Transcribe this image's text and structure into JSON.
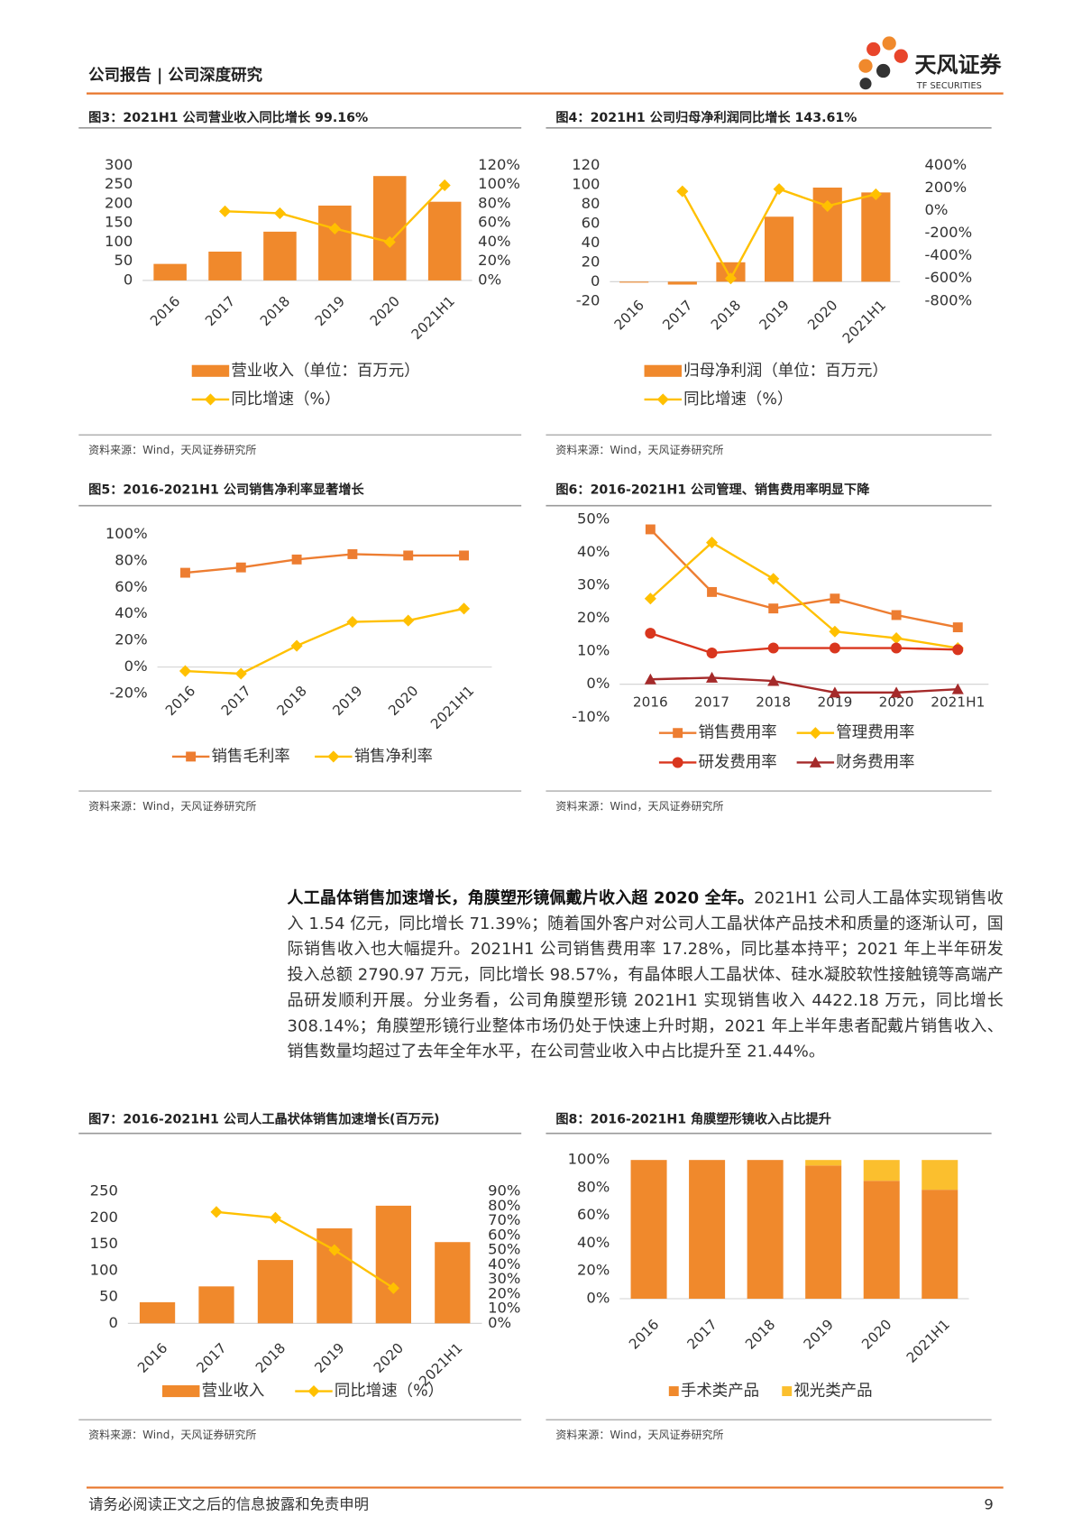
{
  "header": {
    "left": "公司报告 | 公司深度研究",
    "logo": "天风证券",
    "logo_en": "TF SECURITIES"
  },
  "body": {
    "lead": "人工晶体销售加速增长，角膜塑形镜佩戴片收入超 2020 全年。",
    "text": "2021H1 公司人工晶体实现销售收入 1.54 亿元，同比增长 71.39%；随着国外客户对公司人工晶状体产品技术和质量的逐渐认可，国际销售收入也大幅提升。2021H1 公司销售费用率 17.28%，同比基本持平；2021 年上半年研发投入总额 2790.97 万元，同比增长 98.57%，有晶体眼人工晶状体、硅水凝胶软性接触镜等高端产品研发顺利开展。分业务看，公司角膜塑形镜 2021H1 实现销售收入 4422.18 万元，同比增长 308.14%；角膜塑形镜行业整体市场仍处于快速上升时期，2021 年上半年患者配戴片销售收入、销售数量均超过了去年全年水平，在公司营业收入中占比提升至 21.44%。"
  },
  "footer": {
    "disclaimer": "请务必阅读正文之后的信息披露和免责申明",
    "page": "9"
  },
  "chart_data": [
    {
      "type": "bar",
      "title": "图3：2021H1 公司营业收入同比增长 99.16%",
      "source": "资料来源：Wind，天风证券研究所",
      "categories": [
        "2016",
        "2017",
        "2018",
        "2019",
        "2020",
        "2021H1"
      ],
      "series": [
        {
          "name": "营业收入（单位：百万元）",
          "type": "bar",
          "color": "#F0892C",
          "values": [
            43,
            75,
            127,
            195,
            272,
            205
          ]
        },
        {
          "name": "同比增速（%）",
          "type": "line",
          "marker": "diamond",
          "axis": "y2",
          "color": "#FFC000",
          "values": [
            null,
            72,
            70,
            54,
            40,
            99.16
          ]
        }
      ],
      "ylim": [
        0,
        300
      ],
      "yticks": [
        0,
        50,
        100,
        150,
        200,
        250,
        300
      ],
      "y2lim": [
        0,
        120
      ],
      "y2ticks": [
        {
          "value": 0,
          "label": "0%"
        },
        {
          "value": 20,
          "label": "20%"
        },
        {
          "value": 40,
          "label": "40%"
        },
        {
          "value": 60,
          "label": "60%"
        },
        {
          "value": 80,
          "label": "80%"
        },
        {
          "value": 100,
          "label": "100%"
        },
        {
          "value": 120,
          "label": "120%"
        }
      ]
    },
    {
      "type": "bar",
      "title": "图4：2021H1 公司归母净利润同比增长 143.61%",
      "source": "资料来源：Wind，天风证券研究所",
      "categories": [
        "2016",
        "2017",
        "2018",
        "2019",
        "2020",
        "2021H1"
      ],
      "series": [
        {
          "name": "归母净利润（单位：百万元）",
          "type": "bar",
          "color": "#F0892C",
          "values": [
            -1,
            -3,
            20,
            67,
            97,
            92
          ]
        },
        {
          "name": "同比增速（%）",
          "type": "line",
          "marker": "diamond",
          "axis": "y2",
          "color": "#FFC000",
          "values": [
            null,
            170,
            -600,
            190,
            40,
            143.61
          ]
        }
      ],
      "ylim": [
        -20,
        120
      ],
      "yticks": [
        -20,
        0,
        20,
        40,
        60,
        80,
        100,
        120
      ],
      "y2lim": [
        -800,
        400
      ],
      "y2ticks": [
        {
          "value": -800,
          "label": "-800%"
        },
        {
          "value": -600,
          "label": "-600%"
        },
        {
          "value": -400,
          "label": "-400%"
        },
        {
          "value": -200,
          "label": "-200%"
        },
        {
          "value": 0,
          "label": "0%"
        },
        {
          "value": 200,
          "label": "200%"
        },
        {
          "value": 400,
          "label": "400%"
        }
      ]
    },
    {
      "type": "line",
      "title": "图5：2016-2021H1 公司销售净利率显著增长",
      "source": "资料来源：Wind，天风证券研究所",
      "categories": [
        "2016",
        "2017",
        "2018",
        "2019",
        "2020",
        "2021H1"
      ],
      "series": [
        {
          "name": "销售毛利率",
          "marker": "square",
          "color": "#ED7D31",
          "values": [
            71,
            75,
            81,
            85,
            84,
            84
          ]
        },
        {
          "name": "销售净利率",
          "marker": "diamond",
          "color": "#FFC000",
          "values": [
            -3,
            -5,
            16,
            34,
            35,
            44
          ]
        }
      ],
      "ylim": [
        -20,
        100
      ],
      "yticks": [
        {
          "value": -20,
          "label": "-20%"
        },
        {
          "value": 0,
          "label": "0%"
        },
        {
          "value": 20,
          "label": "20%"
        },
        {
          "value": 40,
          "label": "40%"
        },
        {
          "value": 60,
          "label": "60%"
        },
        {
          "value": 80,
          "label": "80%"
        },
        {
          "value": 100,
          "label": "100%"
        }
      ]
    },
    {
      "type": "line",
      "title": "图6：2016-2021H1 公司管理、销售费用率明显下降",
      "source": "资料来源：Wind，天风证券研究所",
      "categories": [
        "2016",
        "2017",
        "2018",
        "2019",
        "2020",
        "2021H1"
      ],
      "series": [
        {
          "name": "销售费用率",
          "marker": "square",
          "color": "#ED7D31",
          "values": [
            47,
            28,
            23,
            26,
            21,
            17.28
          ]
        },
        {
          "name": "管理费用率",
          "marker": "diamond",
          "color": "#FFC000",
          "values": [
            26,
            43,
            32,
            16,
            14,
            11
          ]
        },
        {
          "name": "研发费用率",
          "marker": "circle",
          "color": "#D9361E",
          "values": [
            15.5,
            9.5,
            11,
            11,
            11,
            10.5
          ]
        },
        {
          "name": "财务费用率",
          "marker": "triangle",
          "color": "#A52A2A",
          "values": [
            1.5,
            2,
            1,
            -2.5,
            -2.5,
            -1.5
          ]
        }
      ],
      "ylim": [
        -10,
        50
      ],
      "yticks": [
        {
          "value": -10,
          "label": "-10%"
        },
        {
          "value": 0,
          "label": "0%"
        },
        {
          "value": 10,
          "label": "10%"
        },
        {
          "value": 20,
          "label": "20%"
        },
        {
          "value": 30,
          "label": "30%"
        },
        {
          "value": 40,
          "label": "40%"
        },
        {
          "value": 50,
          "label": "50%"
        }
      ]
    },
    {
      "type": "bar",
      "title": "图7：2016-2021H1 公司人工晶状体销售加速增长(百万元)",
      "source": "资料来源：Wind，天风证券研究所",
      "categories": [
        "2016",
        "2017",
        "2018",
        "2019",
        "2020",
        "2021H1"
      ],
      "series": [
        {
          "name": "营业收入",
          "type": "bar",
          "color": "#F0892C",
          "values": [
            40,
            70,
            120,
            180,
            223,
            154
          ]
        },
        {
          "name": "同比增速（%）",
          "type": "line",
          "marker": "diamond",
          "axis": "y2",
          "color": "#FFC000",
          "values": [
            null,
            76,
            72,
            50,
            24,
            null
          ]
        }
      ],
      "ylim": [
        0,
        250
      ],
      "yticks": [
        0,
        50,
        100,
        150,
        200,
        250
      ],
      "y2lim": [
        0,
        90
      ],
      "y2ticks": [
        {
          "value": 0,
          "label": "0%"
        },
        {
          "value": 10,
          "label": "10%"
        },
        {
          "value": 20,
          "label": "20%"
        },
        {
          "value": 30,
          "label": "30%"
        },
        {
          "value": 40,
          "label": "40%"
        },
        {
          "value": 50,
          "label": "50%"
        },
        {
          "value": 60,
          "label": "60%"
        },
        {
          "value": 70,
          "label": "70%"
        },
        {
          "value": 80,
          "label": "80%"
        },
        {
          "value": 90,
          "label": "90%"
        }
      ]
    },
    {
      "type": "bar",
      "stacked": true,
      "title": "图8：2016-2021H1 角膜塑形镜收入占比提升",
      "source": "资料来源：Wind，天风证券研究所",
      "categories": [
        "2016",
        "2017",
        "2018",
        "2019",
        "2020",
        "2021H1"
      ],
      "series": [
        {
          "name": "手术类产品",
          "type": "bar",
          "color": "#F0892C",
          "values": [
            100,
            100,
            100,
            96,
            85,
            78.56
          ]
        },
        {
          "name": "视光类产品",
          "type": "bar",
          "color": "#FBBF2E",
          "values": [
            0,
            0,
            0,
            4,
            15,
            21.44
          ]
        }
      ],
      "ylim": [
        0,
        100
      ],
      "yticks": [
        {
          "value": 0,
          "label": "0%"
        },
        {
          "value": 20,
          "label": "20%"
        },
        {
          "value": 40,
          "label": "40%"
        },
        {
          "value": 60,
          "label": "60%"
        },
        {
          "value": 80,
          "label": "80%"
        },
        {
          "value": 100,
          "label": "100%"
        }
      ]
    }
  ]
}
